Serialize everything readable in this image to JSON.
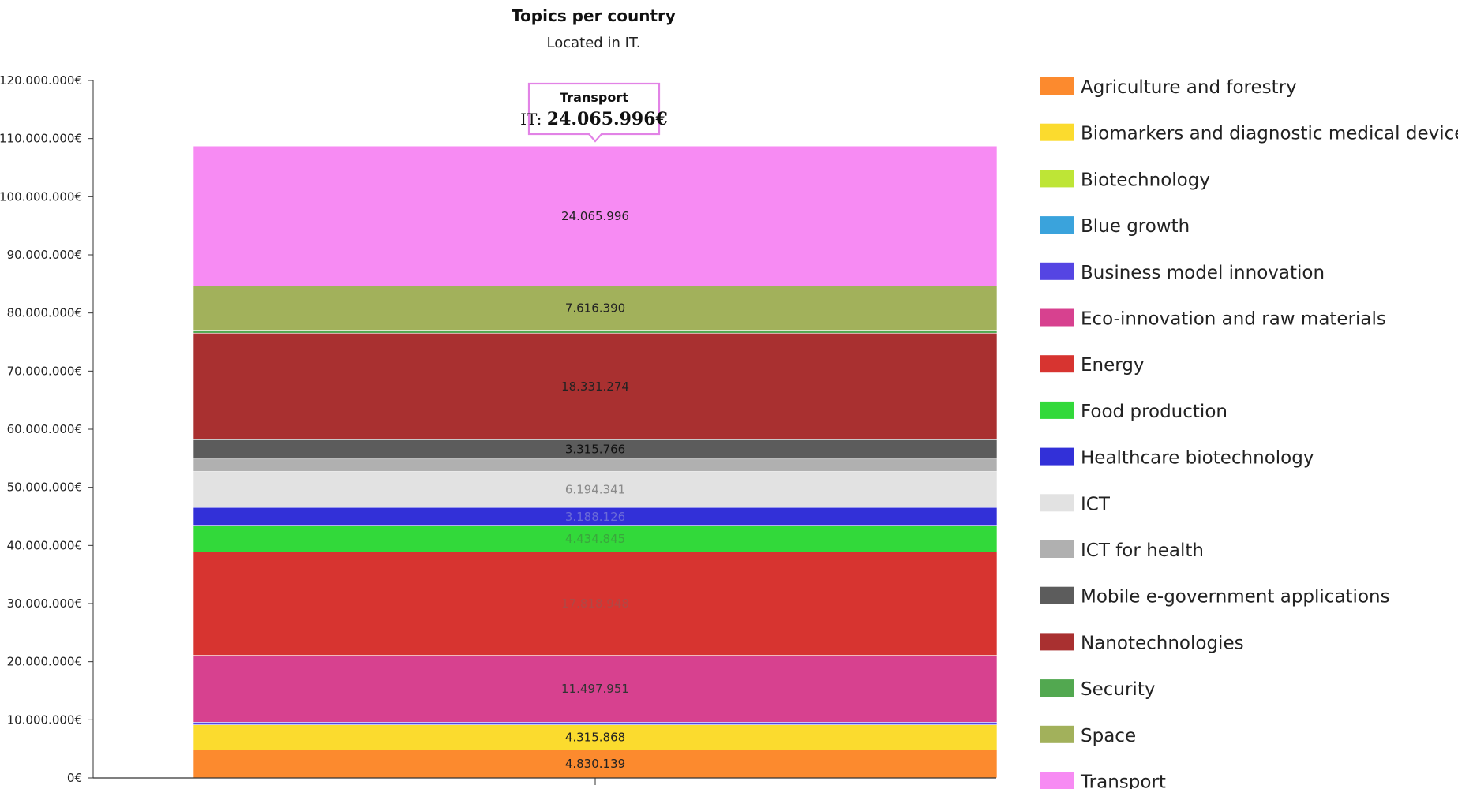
{
  "chart_data": {
    "type": "bar",
    "stacked": true,
    "title": "Topics per country",
    "subtitle": "Located in IT.",
    "categories": [
      "IT"
    ],
    "xlabel": "",
    "ylabel": "",
    "ylim": [
      0,
      120000000
    ],
    "ytick_step": 10000000,
    "y_tick_labels": [
      "0€",
      "10.000.000€",
      "20.000.000€",
      "30.000.000€",
      "40.000.000€",
      "50.000.000€",
      "60.000.000€",
      "70.000.000€",
      "80.000.000€",
      "90.000.000€",
      "100.000.000€",
      "110.000.000€",
      "120.000.000€"
    ],
    "grid": false,
    "legend_position": "right",
    "series": [
      {
        "name": "Agriculture and forestry",
        "color": "#fc8a2e",
        "value": 4830139,
        "label": "4.830.139",
        "label_color": "#222222"
      },
      {
        "name": "Biomarkers and diagnostic medical devices",
        "color": "#fbdb2e",
        "value": 4315868,
        "label": "4.315.868",
        "label_color": "#222222"
      },
      {
        "name": "Biotechnology",
        "color": "#bee536",
        "value": 0,
        "label": "",
        "label_color": "#222222"
      },
      {
        "name": "Blue growth",
        "color": "#3aa3dc",
        "value": 0,
        "label": "",
        "label_color": "#222222"
      },
      {
        "name": "Business model innovation",
        "color": "#5545e3",
        "value": 450000,
        "label": "",
        "label_color": "#222222"
      },
      {
        "name": "Eco-innovation and raw materials",
        "color": "#d7418f",
        "value": 11497951,
        "label": "11.497.951",
        "label_color": "#333333"
      },
      {
        "name": "Energy",
        "color": "#d73430",
        "value": 17818948,
        "label": "17.818.948",
        "label_color": "#b04845"
      },
      {
        "name": "Food production",
        "color": "#32d93a",
        "value": 4434845,
        "label": "4.434.845",
        "label_color": "#3aa63d"
      },
      {
        "name": "Healthcare biotechnology",
        "color": "#3230d8",
        "value": 3188126,
        "label": "3.188.126",
        "label_color": "#6b6bd8"
      },
      {
        "name": "ICT",
        "color": "#e2e2e2",
        "value": 6194341,
        "label": "6.194.341",
        "label_color": "#8a8a8a"
      },
      {
        "name": "ICT for health",
        "color": "#b0b0b0",
        "value": 2150000,
        "label": "",
        "label_color": "#222222"
      },
      {
        "name": "Mobile e-government applications",
        "color": "#5c5c5c",
        "value": 3315766,
        "label": "3.315.766",
        "label_color": "#111111"
      },
      {
        "name": "Nanotechnologies",
        "color": "#a93030",
        "value": 18331274,
        "label": "18.331.274",
        "label_color": "#222222"
      },
      {
        "name": "Security",
        "color": "#52a850",
        "value": 500000,
        "label": "",
        "label_color": "#222222"
      },
      {
        "name": "Space",
        "color": "#a2b15b",
        "value": 7616390,
        "label": "7.616.390",
        "label_color": "#222222"
      },
      {
        "name": "Transport",
        "color": "#f78bf3",
        "value": 24065996,
        "label": "24.065.996",
        "label_color": "#222222"
      }
    ],
    "tooltip": {
      "title": "Transport",
      "series_prefix": "IT:",
      "value": "24.065.996€",
      "border_color": "#e283e6"
    }
  }
}
